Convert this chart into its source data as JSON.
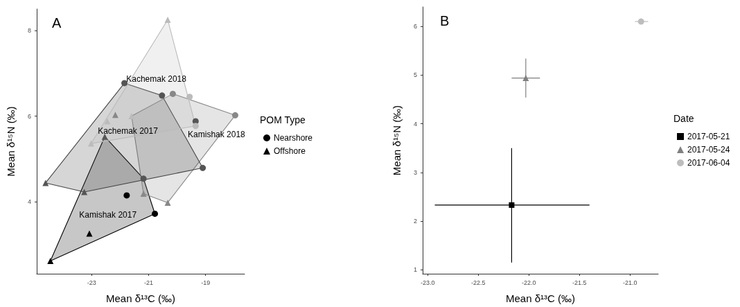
{
  "chart_data": [
    {
      "type": "scatter",
      "title": "A",
      "xlabel": "Mean δ¹³C (‰)",
      "ylabel": "Mean δ¹⁵N (‰)",
      "legend_title": "POM Type",
      "legend": "right",
      "grid": false,
      "xlim": [
        -24.93,
        -17.63
      ],
      "ylim": [
        2.32,
        8.5
      ],
      "xticks": [
        -23,
        -21,
        -19
      ],
      "yticks": [
        4,
        6,
        8
      ],
      "series": [
        {
          "type": "area",
          "name": "Kamishak 2017",
          "color": "#000000",
          "x": [
            -24.45,
            -20.78,
            -21.18,
            -22.54
          ],
          "values": [
            2.62,
            3.72,
            4.54,
            5.52
          ]
        },
        {
          "type": "area",
          "name": "Kamishak 2018",
          "color": "#888888",
          "x": [
            -21.6,
            -20.15,
            -17.96,
            -20.33,
            -21.18
          ],
          "values": [
            6.0,
            6.52,
            6.02,
            3.98,
            4.19
          ]
        },
        {
          "type": "area",
          "name": "Kachemak 2018",
          "color": "#444444",
          "x": [
            -24.62,
            -21.85,
            -20.53,
            -19.1,
            -23.26
          ],
          "values": [
            4.44,
            6.77,
            6.48,
            4.79,
            4.23
          ]
        },
        {
          "type": "area",
          "name": "Kachemak 2017",
          "color": "#bbbbbb",
          "x": [
            -23.02,
            -20.33,
            -19.35
          ],
          "values": [
            5.36,
            8.25,
            5.77
          ]
        },
        {
          "name": "Nearshore",
          "marker": "circle",
          "color": "#000000",
          "x": [
            -21.77,
            -20.78,
            -21.18,
            -19.1,
            -21.85,
            -20.53,
            -20.15,
            -17.96,
            -19.35,
            -19.35,
            -19.56
          ],
          "values": [
            4.15,
            3.72,
            4.54,
            4.79,
            6.77,
            6.48,
            6.52,
            6.02,
            5.88,
            5.77,
            6.45
          ],
          "colors": [
            "#000000",
            "#000000",
            "#555555",
            "#555555",
            "#555555",
            "#555555",
            "#888888",
            "#888888",
            "#555555",
            "#bbbbbb",
            "#bbbbbb"
          ]
        },
        {
          "name": "Offshore",
          "marker": "triangle",
          "color": "#000000",
          "x": [
            -24.45,
            -24.62,
            -23.26,
            -22.54,
            -23.08,
            -21.18,
            -20.33,
            -23.02,
            -22.45,
            -22.17,
            -21.6,
            -20.33
          ],
          "values": [
            2.62,
            4.44,
            4.23,
            5.52,
            3.26,
            4.19,
            8.25,
            5.36,
            5.88,
            6.03,
            6.0,
            3.98
          ],
          "colors": [
            "#000000",
            "#555555",
            "#555555",
            "#555555",
            "#000000",
            "#888888",
            "#bbbbbb",
            "#bbbbbb",
            "#bbbbbb",
            "#888888",
            "#bbbbbb",
            "#888888"
          ]
        }
      ]
    },
    {
      "type": "scatter",
      "title": "B",
      "xlabel": "Mean δ¹³C (‰)",
      "ylabel": "Mean δ¹⁵N (‰)",
      "legend_title": "Date",
      "legend": "right",
      "grid": false,
      "xlim": [
        -23.05,
        -20.72
      ],
      "ylim": [
        0.92,
        6.4
      ],
      "xticks": [
        {
          "value": -23,
          "label": "-23.0"
        },
        {
          "value": -22.5,
          "label": "-22.5"
        },
        {
          "value": -22,
          "label": "-22.0"
        },
        {
          "value": -21.5,
          "label": "-21.5"
        },
        {
          "value": -21,
          "label": "-21.0"
        }
      ],
      "yticks": [
        1,
        2,
        3,
        4,
        5,
        6
      ],
      "series": [
        {
          "name": "2017-05-21",
          "marker": "square",
          "color": "#000000",
          "x": [
            -22.17
          ],
          "values": [
            2.33
          ],
          "xerrors": [
            [
              -22.93,
              -21.4
            ]
          ],
          "errors": [
            [
              1.15,
              3.5
            ]
          ]
        },
        {
          "name": "2017-05-24",
          "marker": "triangle",
          "color": "#808080",
          "x": [
            -22.03
          ],
          "values": [
            4.94
          ],
          "xerrors": [
            [
              -22.17,
              -21.89
            ]
          ],
          "errors": [
            [
              4.54,
              5.34
            ]
          ]
        },
        {
          "name": "2017-06-04",
          "marker": "circle",
          "color": "#bdbdbd",
          "x": [
            -20.89
          ],
          "values": [
            6.1
          ],
          "xerrors": [
            [
              -20.95,
              -20.82
            ]
          ],
          "errors": [
            null
          ]
        }
      ]
    }
  ]
}
